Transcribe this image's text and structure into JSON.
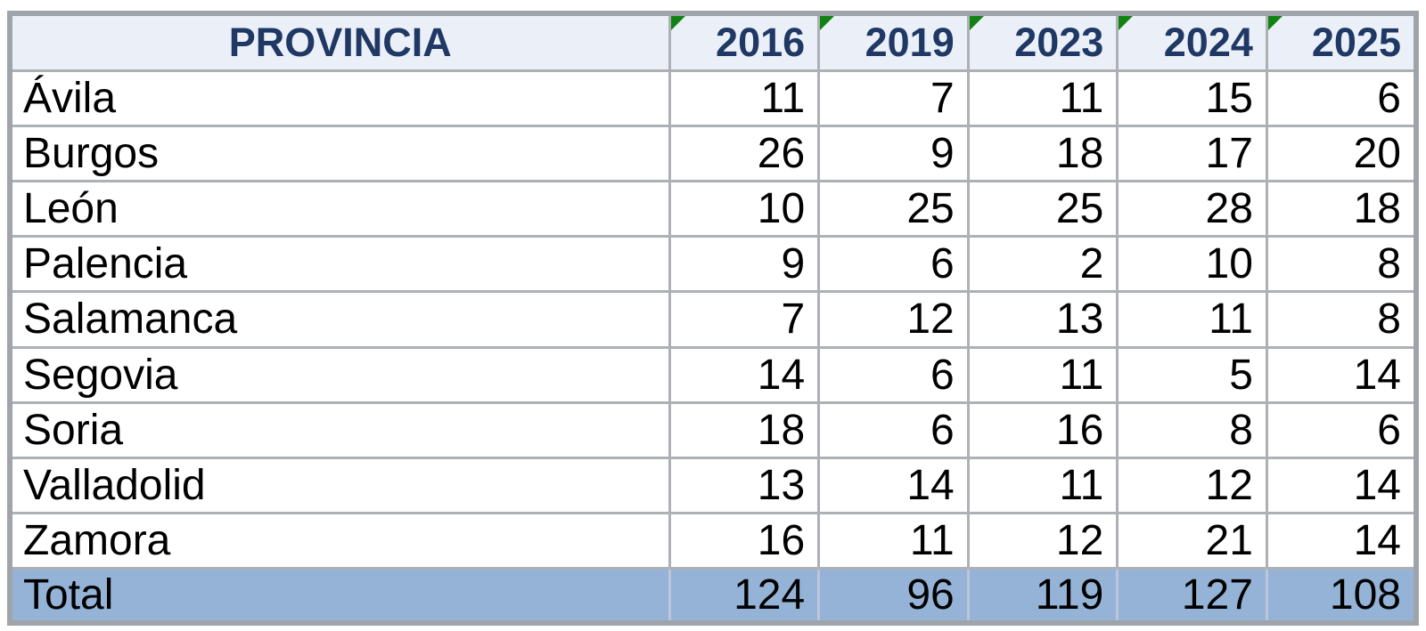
{
  "table": {
    "header": {
      "province_label": "PROVINCIA",
      "years": [
        "2016",
        "2019",
        "2023",
        "2024",
        "2025"
      ]
    },
    "rows": [
      {
        "province": "Ávila",
        "values": [
          "11",
          "7",
          "11",
          "15",
          "6"
        ]
      },
      {
        "province": "Burgos",
        "values": [
          "26",
          "9",
          "18",
          "17",
          "20"
        ]
      },
      {
        "province": "León",
        "values": [
          "10",
          "25",
          "25",
          "28",
          "18"
        ]
      },
      {
        "province": "Palencia",
        "values": [
          "9",
          "6",
          "2",
          "10",
          "8"
        ]
      },
      {
        "province": "Salamanca",
        "values": [
          "7",
          "12",
          "13",
          "11",
          "8"
        ]
      },
      {
        "province": "Segovia",
        "values": [
          "14",
          "6",
          "11",
          "5",
          "14"
        ]
      },
      {
        "province": "Soria",
        "values": [
          "18",
          "6",
          "16",
          "8",
          "6"
        ]
      },
      {
        "province": "Valladolid",
        "values": [
          "13",
          "14",
          "11",
          "12",
          "14"
        ]
      },
      {
        "province": "Zamora",
        "values": [
          "16",
          "11",
          "12",
          "21",
          "14"
        ]
      }
    ],
    "total": {
      "label": "Total",
      "values": [
        "124",
        "96",
        "119",
        "127",
        "108"
      ]
    }
  },
  "icons": {
    "year_flag": "corner-triangle-flag"
  },
  "colors": {
    "header_text": "#1F3864",
    "header_bg": "#EBF0F8",
    "total_bg": "#95B3D7",
    "flag_green": "#128212",
    "grid_line": "#ADB0B4",
    "outer_border": "#9FA4AA",
    "total_divider": "#BAC7DA",
    "body_text": "#000000"
  },
  "chart_data": {
    "type": "table",
    "columns": [
      "PROVINCIA",
      "2016",
      "2019",
      "2023",
      "2024",
      "2025"
    ],
    "rows": [
      [
        "Ávila",
        11,
        7,
        11,
        15,
        6
      ],
      [
        "Burgos",
        26,
        9,
        18,
        17,
        20
      ],
      [
        "León",
        10,
        25,
        25,
        28,
        18
      ],
      [
        "Palencia",
        9,
        6,
        2,
        10,
        8
      ],
      [
        "Salamanca",
        7,
        12,
        13,
        11,
        8
      ],
      [
        "Segovia",
        14,
        6,
        11,
        5,
        14
      ],
      [
        "Soria",
        18,
        6,
        16,
        8,
        6
      ],
      [
        "Valladolid",
        13,
        14,
        11,
        12,
        14
      ],
      [
        "Zamora",
        16,
        11,
        12,
        21,
        14
      ],
      [
        "Total",
        124,
        96,
        119,
        127,
        108
      ]
    ]
  }
}
